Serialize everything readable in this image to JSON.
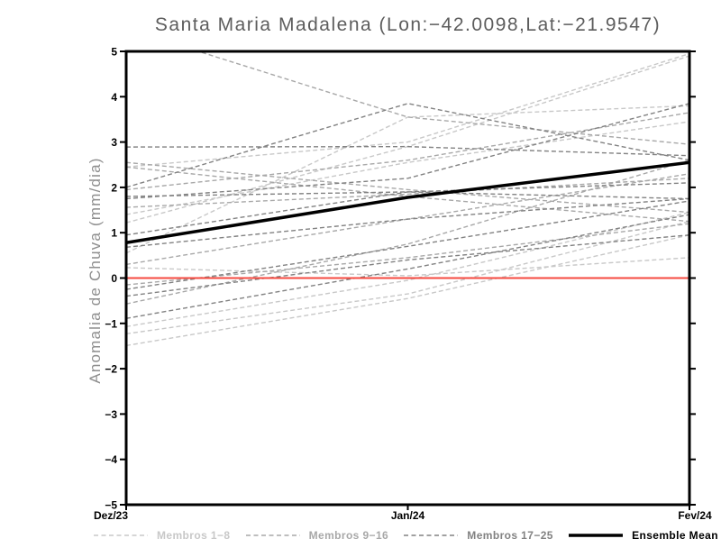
{
  "chart_data": {
    "type": "line",
    "title": "Santa Maria Madalena (Lon:−42.0098,Lat:−21.9547)",
    "ylabel": "Anomalia de Chuva (mm/dia)",
    "x_categories": [
      "Dez/23",
      "Jan/24",
      "Fev/24"
    ],
    "ylim": [
      -5,
      5
    ],
    "yticks": [
      5,
      4,
      3,
      2,
      1,
      0,
      -1,
      -2,
      -3,
      -4,
      -5
    ],
    "ytick_labels": [
      "5",
      "4",
      "3",
      "2",
      "1",
      "0",
      "−1",
      "−2",
      "−3",
      "−4",
      "−5"
    ],
    "grid": false,
    "legend_position": "bottom",
    "zero_line": {
      "y": 0,
      "color": "#f5493f"
    },
    "member_groups": [
      {
        "label": "Membros 1−8",
        "color": "#c8c8c8",
        "style": "dashed"
      },
      {
        "label": "Membros 9−16",
        "color": "#a8a8a8",
        "style": "dashed"
      },
      {
        "label": "Membros 17−25",
        "color": "#828282",
        "style": "dashed"
      }
    ],
    "mean": {
      "label": "Ensemble Mean",
      "color": "#000000",
      "style": "solid",
      "values": [
        0.78,
        1.78,
        2.55
      ]
    },
    "members": [
      {
        "group": 0,
        "values": [
          -1.49,
          -0.45,
          0.95
        ]
      },
      {
        "group": 0,
        "values": [
          -1.23,
          -0.35,
          1.25
        ]
      },
      {
        "group": 0,
        "values": [
          -1.07,
          -0.05,
          1.45
        ]
      },
      {
        "group": 0,
        "values": [
          0.23,
          0.05,
          0.45
        ]
      },
      {
        "group": 0,
        "values": [
          1.22,
          2.9,
          4.9
        ]
      },
      {
        "group": 0,
        "values": [
          1.4,
          2.55,
          3.45
        ]
      },
      {
        "group": 0,
        "values": [
          0.55,
          3.55,
          3.8
        ]
      },
      {
        "group": 0,
        "values": [
          2.45,
          3.0,
          4.95
        ]
      },
      {
        "group": 1,
        "values": [
          5.5,
          3.55,
          2.95
        ]
      },
      {
        "group": 1,
        "values": [
          -0.15,
          0.45,
          1.2
        ]
      },
      {
        "group": 1,
        "values": [
          0.3,
          1.3,
          2.3
        ]
      },
      {
        "group": 1,
        "values": [
          1.56,
          1.85,
          2.2
        ]
      },
      {
        "group": 1,
        "values": [
          1.95,
          2.6,
          3.65
        ]
      },
      {
        "group": 1,
        "values": [
          2.55,
          1.95,
          1.45
        ]
      },
      {
        "group": 1,
        "values": [
          2.45,
          1.8,
          1.25
        ]
      },
      {
        "group": 1,
        "values": [
          -0.57,
          0.75,
          2.6
        ]
      },
      {
        "group": 2,
        "values": [
          2.89,
          2.9,
          2.7
        ]
      },
      {
        "group": 2,
        "values": [
          2.0,
          3.85,
          2.6
        ]
      },
      {
        "group": 2,
        "values": [
          1.8,
          1.9,
          2.1
        ]
      },
      {
        "group": 2,
        "values": [
          1.75,
          2.2,
          3.85
        ]
      },
      {
        "group": 2,
        "values": [
          0.68,
          1.3,
          1.75
        ]
      },
      {
        "group": 2,
        "values": [
          0.95,
          1.9,
          1.75
        ]
      },
      {
        "group": 2,
        "values": [
          -0.25,
          0.7,
          1.7
        ]
      },
      {
        "group": 2,
        "values": [
          -0.4,
          0.4,
          0.95
        ]
      },
      {
        "group": 2,
        "values": [
          -0.89,
          0.2,
          1.4
        ]
      }
    ]
  }
}
